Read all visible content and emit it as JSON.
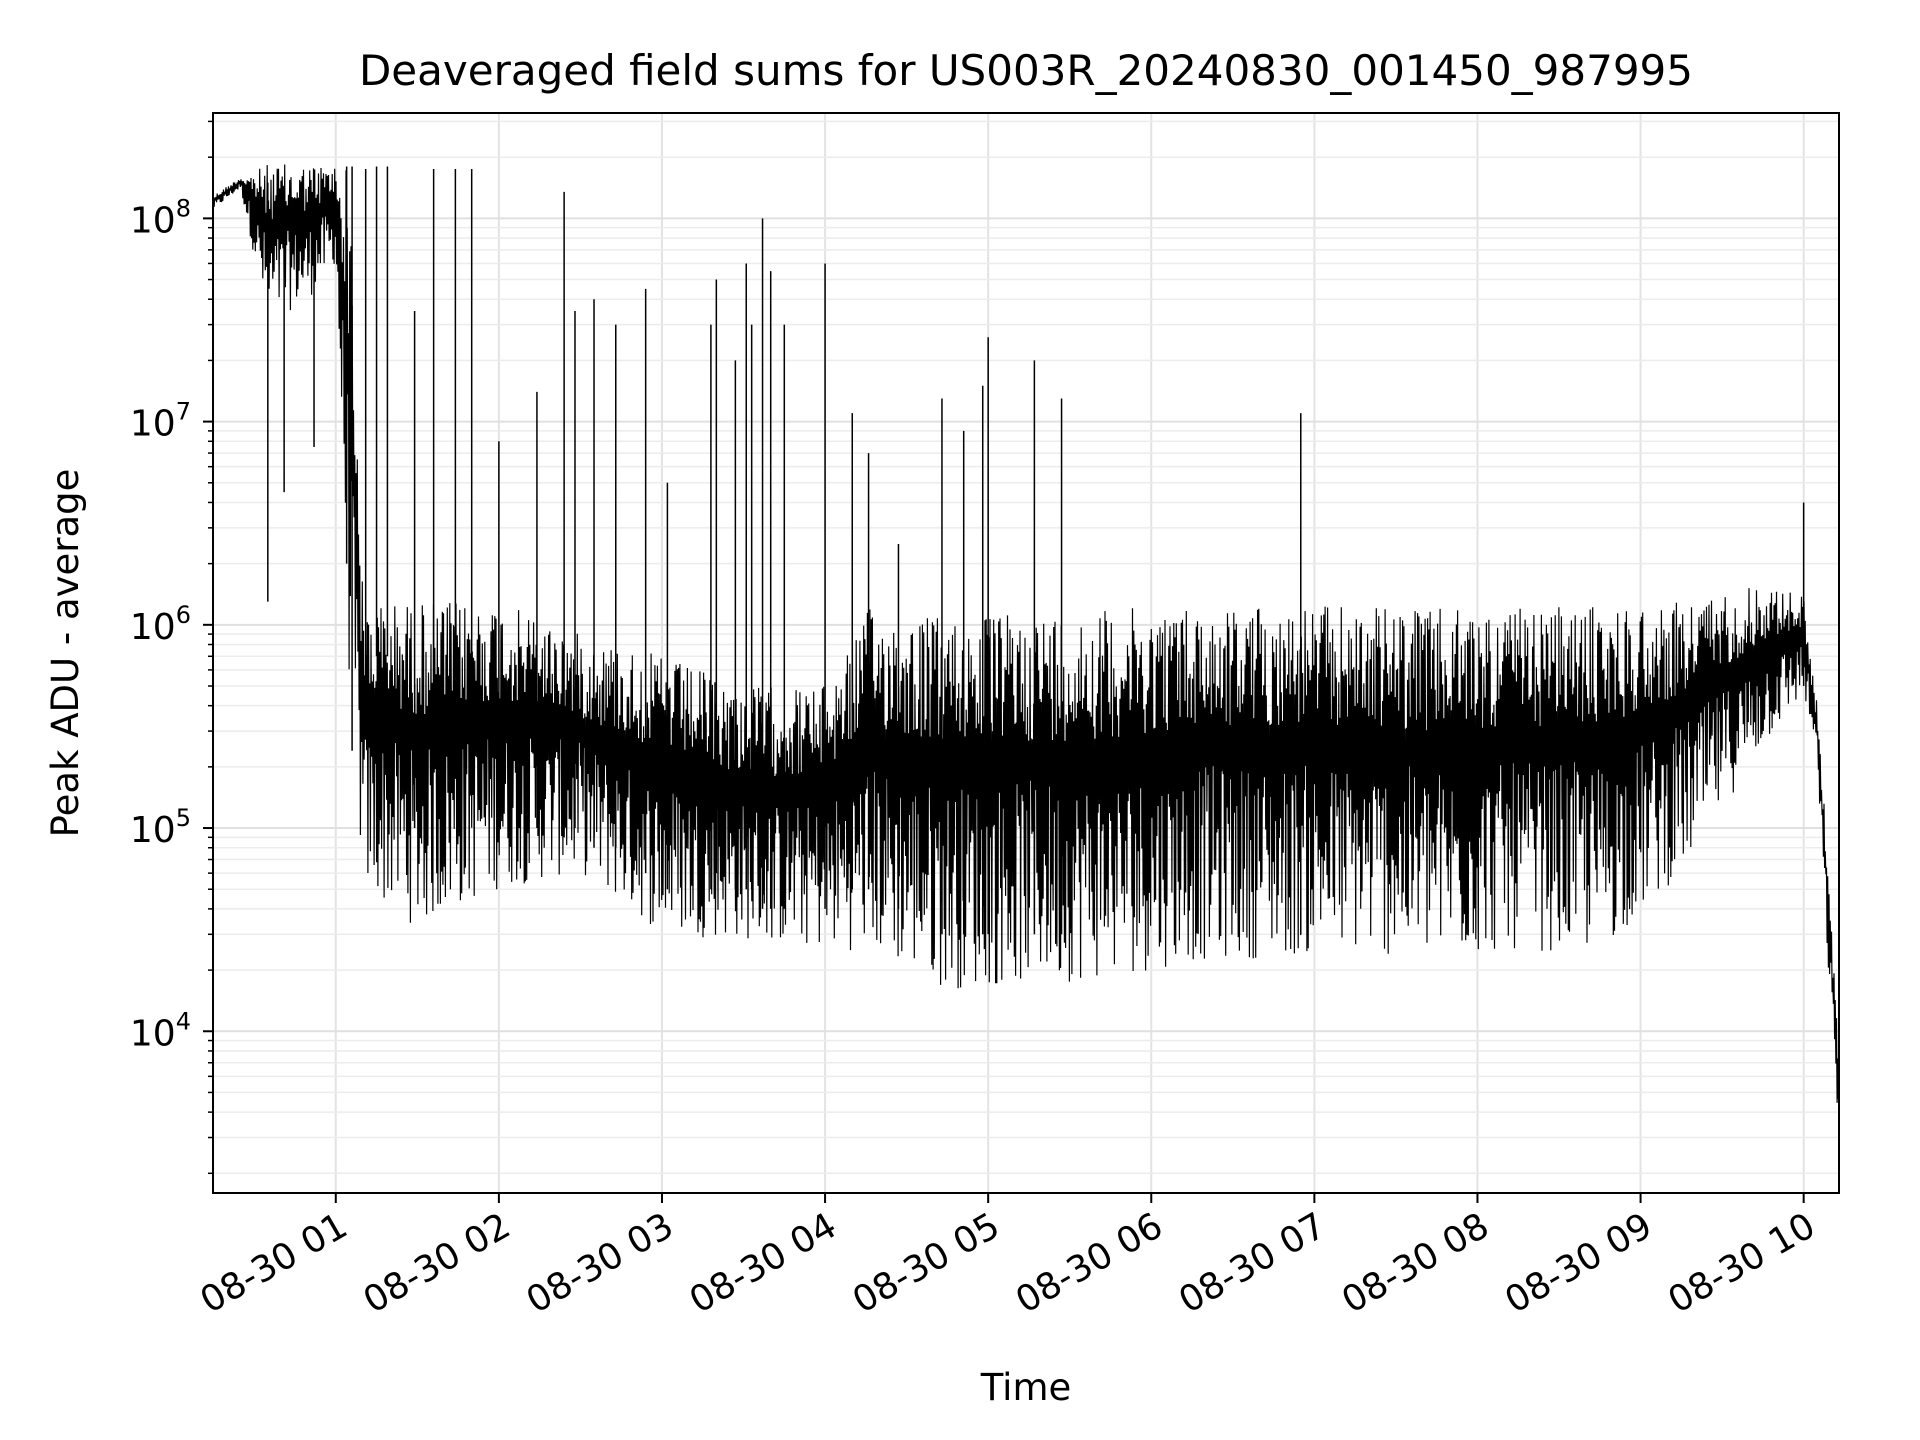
{
  "chart_data": {
    "type": "line",
    "title": "Deaveraged field sums for US003R_20240830_001450_987995",
    "xlabel": "Time",
    "ylabel": "Peak ADU - average",
    "x_scale": "time",
    "y_scale": "log",
    "xlim": [
      "2024-08-30 00:14:50",
      "2024-08-30 10:13:00"
    ],
    "ylim": [
      1600,
      330000000
    ],
    "x_ticks": [
      {
        "value": "2024-08-30 01:00",
        "label": "08-30 01"
      },
      {
        "value": "2024-08-30 02:00",
        "label": "08-30 02"
      },
      {
        "value": "2024-08-30 03:00",
        "label": "08-30 03"
      },
      {
        "value": "2024-08-30 04:00",
        "label": "08-30 04"
      },
      {
        "value": "2024-08-30 05:00",
        "label": "08-30 05"
      },
      {
        "value": "2024-08-30 06:00",
        "label": "08-30 06"
      },
      {
        "value": "2024-08-30 07:00",
        "label": "08-30 07"
      },
      {
        "value": "2024-08-30 08:00",
        "label": "08-30 08"
      },
      {
        "value": "2024-08-30 09:00",
        "label": "08-30 09"
      },
      {
        "value": "2024-08-30 10:00",
        "label": "08-30 10"
      }
    ],
    "y_ticks": [
      {
        "value": 10000,
        "base": "10",
        "exp": "4"
      },
      {
        "value": 100000,
        "base": "10",
        "exp": "5"
      },
      {
        "value": 1000000,
        "base": "10",
        "exp": "6"
      },
      {
        "value": 10000000,
        "base": "10",
        "exp": "7"
      },
      {
        "value": 100000000,
        "base": "10",
        "exp": "8"
      }
    ],
    "grid": true,
    "line_color": "#000000",
    "series": [
      {
        "envelope_points": [
          {
            "t": "2024-08-30 00:15",
            "upper": 130000000,
            "lower": 110000000
          },
          {
            "t": "2024-08-30 00:25",
            "upper": 160000000,
            "lower": 140000000
          },
          {
            "t": "2024-08-30 00:35",
            "upper": 185000000,
            "lower": 30000000
          },
          {
            "t": "2024-08-30 00:50",
            "upper": 185000000,
            "lower": 40000000
          },
          {
            "t": "2024-08-30 01:00",
            "upper": 185000000,
            "lower": 60000000
          },
          {
            "t": "2024-08-30 01:05",
            "upper": 185000000,
            "lower": 500000
          },
          {
            "t": "2024-08-30 01:10",
            "upper": 1300000,
            "lower": 50000
          },
          {
            "t": "2024-08-30 01:30",
            "upper": 1300000,
            "lower": 32000
          },
          {
            "t": "2024-08-30 02:00",
            "upper": 1300000,
            "lower": 50000
          },
          {
            "t": "2024-08-30 02:30",
            "upper": 900000,
            "lower": 60000
          },
          {
            "t": "2024-08-30 03:00",
            "upper": 700000,
            "lower": 30000
          },
          {
            "t": "2024-08-30 03:30",
            "upper": 500000,
            "lower": 28000
          },
          {
            "t": "2024-08-30 04:00",
            "upper": 500000,
            "lower": 25000
          },
          {
            "t": "2024-08-30 04:15",
            "upper": 1200000,
            "lower": 25000
          },
          {
            "t": "2024-08-30 04:45",
            "upper": 1100000,
            "lower": 16000
          },
          {
            "t": "2024-08-30 05:15",
            "upper": 1150000,
            "lower": 17000
          },
          {
            "t": "2024-08-30 05:45",
            "upper": 1200000,
            "lower": 18000
          },
          {
            "t": "2024-08-30 06:15",
            "upper": 1250000,
            "lower": 22000
          },
          {
            "t": "2024-08-30 06:45",
            "upper": 1250000,
            "lower": 23000
          },
          {
            "t": "2024-08-30 07:15",
            "upper": 1250000,
            "lower": 24000
          },
          {
            "t": "2024-08-30 07:45",
            "upper": 1200000,
            "lower": 22000
          },
          {
            "t": "2024-08-30 08:15",
            "upper": 1200000,
            "lower": 25000
          },
          {
            "t": "2024-08-30 08:45",
            "upper": 1250000,
            "lower": 24000
          },
          {
            "t": "2024-08-30 09:15",
            "upper": 1300000,
            "lower": 60000
          },
          {
            "t": "2024-08-30 09:45",
            "upper": 1600000,
            "lower": 250000
          },
          {
            "t": "2024-08-30 10:00",
            "upper": 1400000,
            "lower": 450000
          },
          {
            "t": "2024-08-30 10:05",
            "upper": 400000,
            "lower": 200000
          },
          {
            "t": "2024-08-30 10:09",
            "upper": 70000,
            "lower": 20000
          },
          {
            "t": "2024-08-30 10:13",
            "upper": 7000,
            "lower": 3000
          }
        ],
        "spikes": [
          {
            "t": "2024-08-30 00:35",
            "low": 1300000,
            "high": 150000000
          },
          {
            "t": "2024-08-30 00:41",
            "low": 4500000,
            "high": 100000000
          },
          {
            "t": "2024-08-30 00:52",
            "low": 7500000,
            "high": 90000000
          },
          {
            "t": "2024-08-30 01:04",
            "low": 2000000,
            "high": 180000000
          },
          {
            "t": "2024-08-30 01:06",
            "low": 240000,
            "high": 180000000
          },
          {
            "t": "2024-08-30 01:11",
            "low": 300000,
            "high": 175000000
          },
          {
            "t": "2024-08-30 01:15",
            "low": 700000,
            "high": 180000000
          },
          {
            "t": "2024-08-30 01:19",
            "low": 700000,
            "high": 180000000
          },
          {
            "t": "2024-08-30 01:29",
            "low": 100000,
            "high": 35000000
          },
          {
            "t": "2024-08-30 01:36",
            "low": 300000,
            "high": 175000000
          },
          {
            "t": "2024-08-30 01:44",
            "low": 400000,
            "high": 175000000
          },
          {
            "t": "2024-08-30 01:50",
            "low": 300000,
            "high": 175000000
          },
          {
            "t": "2024-08-30 02:00",
            "low": 300000,
            "high": 8000000
          },
          {
            "t": "2024-08-30 02:14",
            "low": 100000,
            "high": 14000000
          },
          {
            "t": "2024-08-30 02:24",
            "low": 90000,
            "high": 135000000
          },
          {
            "t": "2024-08-30 02:28",
            "low": 100000,
            "high": 35000000
          },
          {
            "t": "2024-08-30 02:35",
            "low": 80000,
            "high": 40000000
          },
          {
            "t": "2024-08-30 02:43",
            "low": 80000,
            "high": 30000000
          },
          {
            "t": "2024-08-30 02:54",
            "low": 60000,
            "high": 45000000
          },
          {
            "t": "2024-08-30 03:02",
            "low": 50000,
            "high": 5000000
          },
          {
            "t": "2024-08-30 03:18",
            "low": 50000,
            "high": 30000000
          },
          {
            "t": "2024-08-30 03:20",
            "low": 60000,
            "high": 50000000
          },
          {
            "t": "2024-08-30 03:27",
            "low": 50000,
            "high": 20000000
          },
          {
            "t": "2024-08-30 03:31",
            "low": 50000,
            "high": 60000000
          },
          {
            "t": "2024-08-30 03:33",
            "low": 50000,
            "high": 30000000
          },
          {
            "t": "2024-08-30 03:37",
            "low": 40000,
            "high": 100000000
          },
          {
            "t": "2024-08-30 03:40",
            "low": 40000,
            "high": 55000000
          },
          {
            "t": "2024-08-30 03:45",
            "low": 40000,
            "high": 30000000
          },
          {
            "t": "2024-08-30 04:00",
            "low": 40000,
            "high": 60000000
          },
          {
            "t": "2024-08-30 04:10",
            "low": 50000,
            "high": 11000000
          },
          {
            "t": "2024-08-30 04:16",
            "low": 50000,
            "high": 7000000
          },
          {
            "t": "2024-08-30 04:27",
            "low": 40000,
            "high": 2500000
          },
          {
            "t": "2024-08-30 04:43",
            "low": 30000,
            "high": 13000000
          },
          {
            "t": "2024-08-30 04:51",
            "low": 30000,
            "high": 9000000
          },
          {
            "t": "2024-08-30 04:58",
            "low": 30000,
            "high": 15000000
          },
          {
            "t": "2024-08-30 05:00",
            "low": 30000,
            "high": 26000000
          },
          {
            "t": "2024-08-30 05:17",
            "low": 30000,
            "high": 20000000
          },
          {
            "t": "2024-08-30 05:27",
            "low": 30000,
            "high": 13000000
          },
          {
            "t": "2024-08-30 06:55",
            "low": 30000,
            "high": 11000000
          },
          {
            "t": "2024-08-30 10:00",
            "low": 500000,
            "high": 4000000
          }
        ]
      }
    ]
  }
}
